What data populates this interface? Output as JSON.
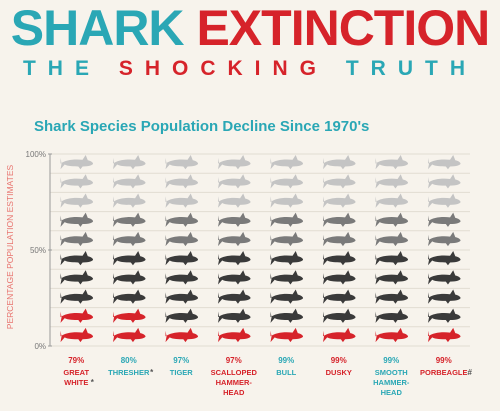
{
  "header": {
    "title_part1": "SHARK",
    "title_part2": "EXTINCTION",
    "subtitle_part1": "THE ",
    "subtitle_part2": "SHOCKING",
    "subtitle_part3": " TRUTH"
  },
  "colors": {
    "teal": "#2aa7b5",
    "red": "#d6232a",
    "dark_shark": "#3a3a3a",
    "mid_shark": "#7a7a7a",
    "light_shark": "#c4c4c4",
    "background": "#f7f3ec",
    "gridline": "#e2dcd2"
  },
  "chart_data": {
    "type": "bar",
    "title": "Shark Species Population Decline Since 1970's",
    "ylabel": "PERCENTAGE POPULATION ESTIMATES",
    "y_ticks": [
      "100%",
      "50%",
      "0%"
    ],
    "ylim": [
      0,
      100
    ],
    "icon_rows": 10,
    "categories": [
      {
        "name": "GREAT WHITE",
        "name_lines": [
          "GREAT",
          "WHITE"
        ],
        "decline": "79%",
        "marker": "*",
        "label_color": "red",
        "remaining_icons": 2
      },
      {
        "name": "THRESHER",
        "name_lines": [
          "THRESHER"
        ],
        "decline": "80%",
        "marker": "*",
        "label_color": "teal",
        "remaining_icons": 2
      },
      {
        "name": "TIGER",
        "name_lines": [
          "TIGER"
        ],
        "decline": "97%",
        "marker": "",
        "label_color": "teal",
        "remaining_icons": 1
      },
      {
        "name": "SCALLOPED HAMMER-HEAD",
        "name_lines": [
          "SCALLOPED",
          "HAMMER-",
          "HEAD"
        ],
        "decline": "97%",
        "marker": "",
        "label_color": "red",
        "remaining_icons": 1
      },
      {
        "name": "BULL",
        "name_lines": [
          "BULL"
        ],
        "decline": "99%",
        "marker": "",
        "label_color": "teal",
        "remaining_icons": 1
      },
      {
        "name": "DUSKY",
        "name_lines": [
          "DUSKY"
        ],
        "decline": "99%",
        "marker": "",
        "label_color": "red",
        "remaining_icons": 1
      },
      {
        "name": "SMOOTH HAMMER-HEAD",
        "name_lines": [
          "SMOOTH",
          "HAMMER-",
          "HEAD"
        ],
        "decline": "99%",
        "marker": "",
        "label_color": "teal",
        "remaining_icons": 1
      },
      {
        "name": "PORBEAGLE",
        "name_lines": [
          "PORBEAGLE"
        ],
        "decline": "99%",
        "marker": "#",
        "label_color": "red",
        "remaining_icons": 1
      }
    ]
  }
}
